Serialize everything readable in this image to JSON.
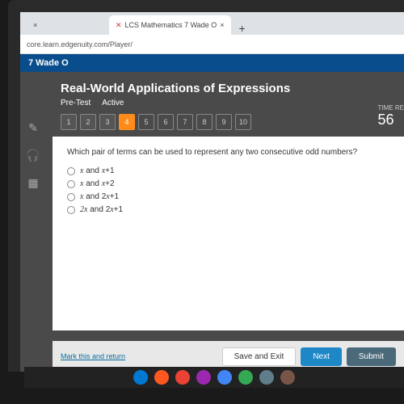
{
  "browser": {
    "tab1_icon": "×",
    "tab2_icon": "✕",
    "tab2_label": "LCS Mathematics 7 Wade O",
    "plus": "+",
    "url": "core.learn.edgenuity.com/Player/"
  },
  "header": {
    "student": "7 Wade O"
  },
  "lesson": {
    "title": "Real-World Applications of Expressions",
    "tab_pretest": "Pre-Test",
    "tab_active": "Active",
    "questions": [
      "1",
      "2",
      "3",
      "4",
      "5",
      "6",
      "7",
      "8",
      "9",
      "10"
    ],
    "current_q": 4,
    "timer_label": "TIME RE",
    "timer_value": "56"
  },
  "question": {
    "prompt": "Which pair of terms can be used to represent any two consecutive odd numbers?",
    "options": [
      {
        "pre": "x",
        "post": " and x+1"
      },
      {
        "pre": "x",
        "post": " and x+2"
      },
      {
        "pre": "x",
        "post": " and 2x+1"
      },
      {
        "pre": "2x",
        "post": " and 2x+1"
      }
    ]
  },
  "footer": {
    "mark": "Mark this and return",
    "save": "Save and Exit",
    "next": "Next",
    "submit": "Submit"
  },
  "taskbar_colors": [
    "#0078d4",
    "#ff5722",
    "#ea4335",
    "#9c27b0",
    "#4285f4",
    "#34a853",
    "#607d8b",
    "#795548"
  ]
}
